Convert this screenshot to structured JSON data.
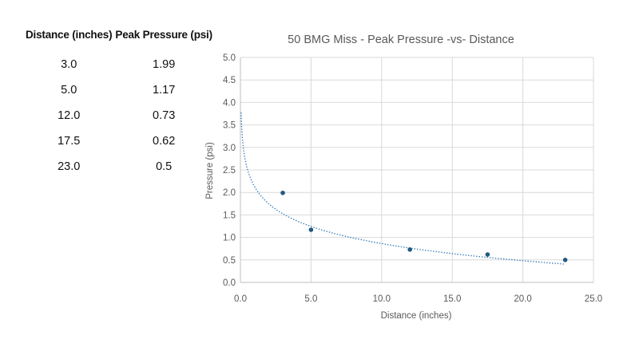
{
  "table": {
    "headers": [
      "Distance (inches)",
      "Peak Pressure (psi)"
    ],
    "rows": [
      [
        "3.0",
        "1.99"
      ],
      [
        "5.0",
        "1.17"
      ],
      [
        "12.0",
        "0.73"
      ],
      [
        "17.5",
        "0.62"
      ],
      [
        "23.0",
        "0.5"
      ]
    ]
  },
  "chart_data": {
    "type": "scatter",
    "title": "50 BMG Miss - Peak Pressure -vs- Distance",
    "xlabel": "Distance (inches)",
    "ylabel": "Pressure (psi)",
    "xlim": [
      0,
      25
    ],
    "ylim": [
      0,
      5
    ],
    "xticks": [
      "0.0",
      "5.0",
      "10.0",
      "15.0",
      "20.0",
      "25.0"
    ],
    "yticks": [
      "0.0",
      "0.5",
      "1.0",
      "1.5",
      "2.0",
      "2.5",
      "3.0",
      "3.5",
      "4.0",
      "4.5",
      "5.0"
    ],
    "grid": true,
    "series": [
      {
        "x": [
          3.0,
          5.0,
          12.0,
          17.5,
          23.0
        ],
        "y": [
          1.99,
          1.17,
          0.73,
          0.62,
          0.5
        ],
        "color": "#1f5a82"
      }
    ],
    "trendline": {
      "type": "logarithmic",
      "style": "dotted",
      "color": "#2e75b6",
      "x_range": [
        0.05,
        23.0
      ],
      "a": 2.13,
      "b": -0.55
    }
  }
}
